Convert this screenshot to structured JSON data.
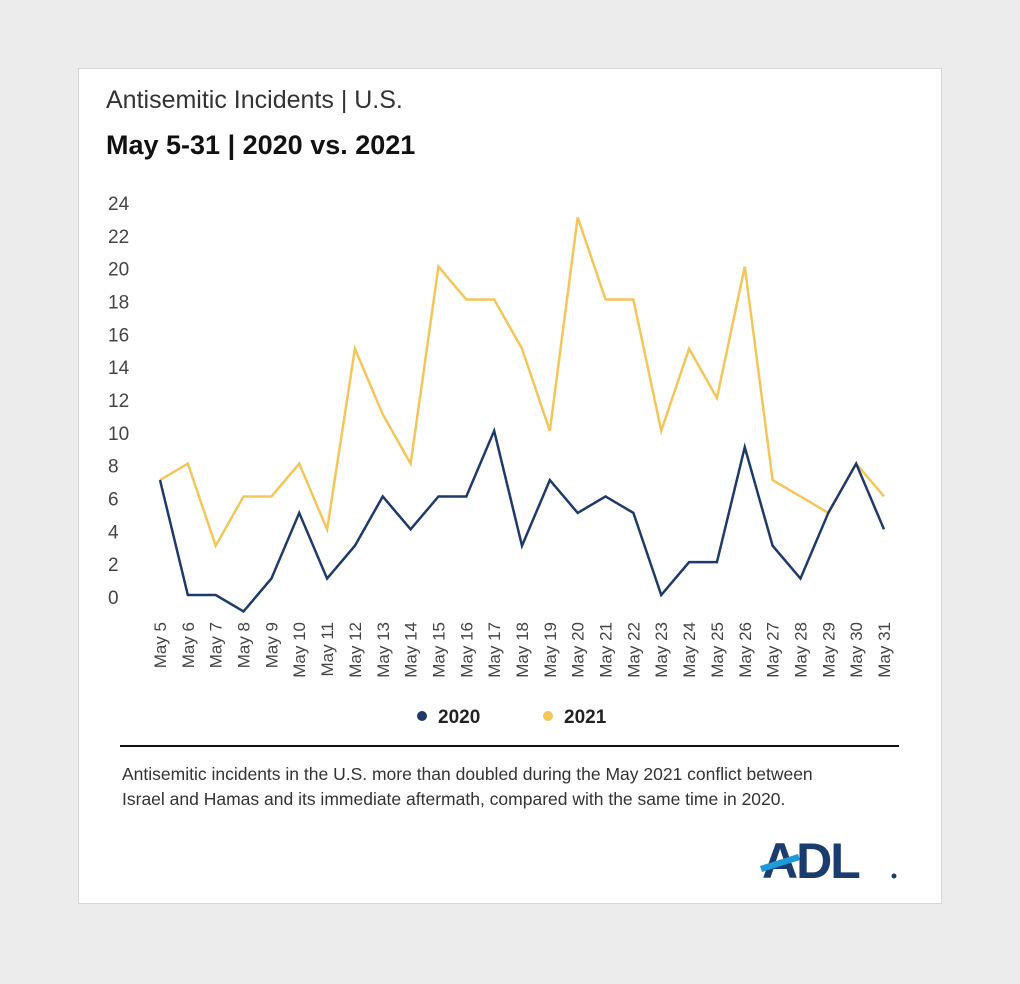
{
  "title": "Antisemitic Incidents | U.S.",
  "subtitle": "May 5-31 | 2020 vs. 2021",
  "caption": "Antisemitic incidents in the U.S. more than doubled during the May 2021 conflict between Israel and Hamas and its immediate aftermath, compared with the same time in 2020.",
  "logo_text": "ADL",
  "colors": {
    "series_2020": "#1f3a68",
    "series_2021": "#f2c65a",
    "logo": "#1b3d6e",
    "logo_accent": "#1e9ad6"
  },
  "chart_data": {
    "type": "line",
    "title": "Antisemitic Incidents | U.S.",
    "subtitle": "May 5-31 | 2020 vs. 2021",
    "xlabel": "",
    "ylabel": "",
    "ylim": [
      0,
      24
    ],
    "yticks": [
      "0",
      "2",
      "4",
      "6",
      "8",
      "10",
      "12",
      "14",
      "16",
      "18",
      "20",
      "22",
      "24"
    ],
    "grid": false,
    "legend": "bottom",
    "categories": [
      "May 5",
      "May 6",
      "May 7",
      "May 8",
      "May 9",
      "May 10",
      "May 11",
      "May 12",
      "May 13",
      "May 14",
      "May 15",
      "May 16",
      "May 17",
      "May 18",
      "May 19",
      "May 20",
      "May 21",
      "May 22",
      "May 23",
      "May 24",
      "May 25",
      "May 26",
      "May 27",
      "May 28",
      "May 29",
      "May 30",
      "May 31"
    ],
    "series": [
      {
        "name": "2020",
        "color": "#1f3a68",
        "values": [
          7,
          0,
          0,
          -1,
          1,
          5,
          1,
          3,
          6,
          4,
          6,
          6,
          10,
          3,
          7,
          5,
          6,
          5,
          0,
          2,
          2,
          9,
          3,
          1,
          5,
          8,
          4
        ]
      },
      {
        "name": "2021",
        "color": "#f2c65a",
        "values": [
          7,
          8,
          3,
          6,
          6,
          8,
          4,
          15,
          11,
          8,
          20,
          18,
          18,
          15,
          10,
          23,
          18,
          18,
          10,
          15,
          12,
          20,
          7,
          6,
          5,
          8,
          6
        ]
      }
    ]
  }
}
